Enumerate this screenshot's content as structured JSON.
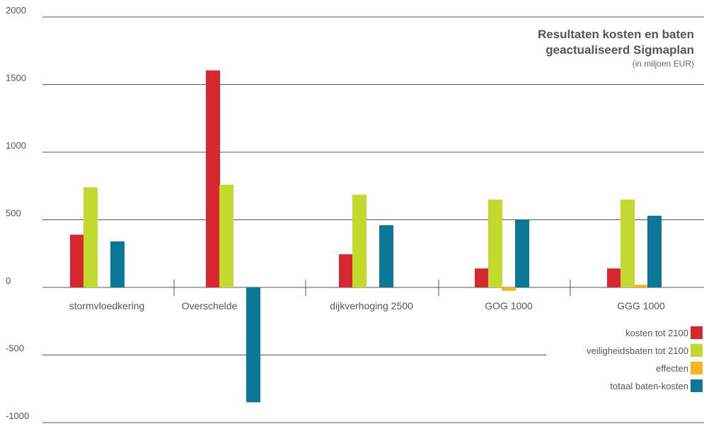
{
  "chart_data": {
    "type": "bar",
    "title_lines": [
      "Resultaten kosten en baten",
      "geactualiseerd Sigmaplan"
    ],
    "subtitle": "(in miljoen EUR)",
    "categories": [
      "stormvloedkering",
      "Overschelde",
      "dijkverhoging 2500",
      "GOG 1000",
      "GGG 1000"
    ],
    "series": [
      {
        "name": "kosten tot 2100",
        "color": "#d7282f",
        "values": [
          390,
          1605,
          245,
          140,
          140
        ]
      },
      {
        "name": "veiligheidsbaten tot 2100",
        "color": "#c2d92e",
        "values": [
          740,
          760,
          685,
          650,
          650
        ]
      },
      {
        "name": "effecten",
        "color": "#f6b51b",
        "values": [
          null,
          null,
          null,
          -25,
          20
        ]
      },
      {
        "name": "totaal baten-kosten",
        "color": "#0a7896",
        "values": [
          340,
          -850,
          460,
          500,
          530
        ]
      }
    ],
    "y_ticks": [
      2000,
      1500,
      1000,
      500,
      0,
      -500,
      -1000
    ],
    "y_tick_labels": [
      "2000",
      "1500",
      "1000",
      "500",
      "0",
      "-500",
      "-1000"
    ],
    "ylim": [
      -1000,
      2000
    ],
    "grid": true,
    "legend_position": "bottom-right"
  }
}
